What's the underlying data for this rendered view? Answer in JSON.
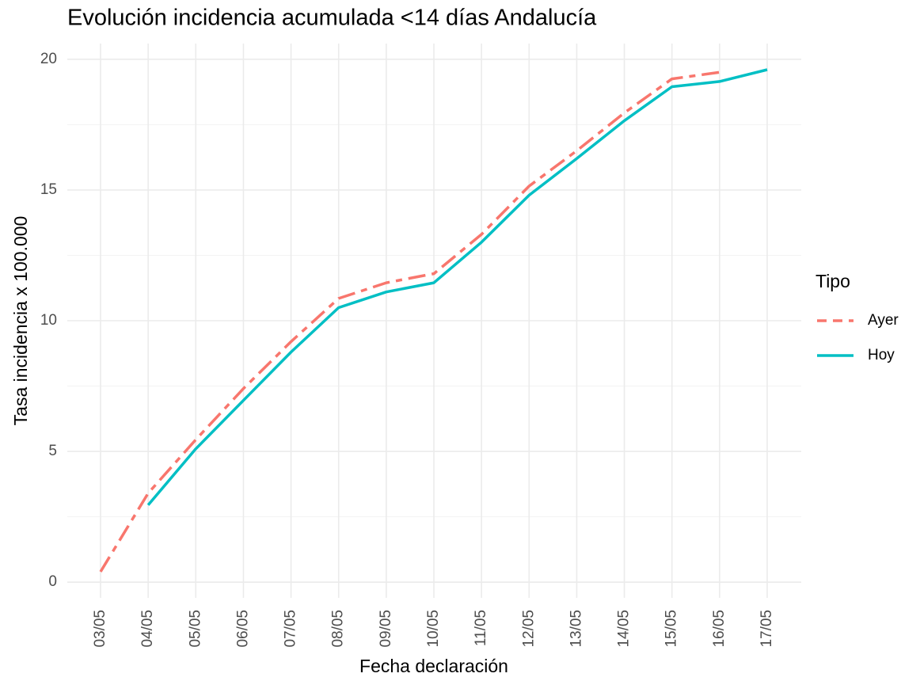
{
  "chart_data": {
    "type": "line",
    "title": "Evolución incidencia acumulada <14 días Andalucía",
    "x_label": "Fecha declaración",
    "y_label": "Tasa incidencia x 100.000",
    "categories": [
      "03/05",
      "04/05",
      "05/05",
      "06/05",
      "07/05",
      "08/05",
      "09/05",
      "10/05",
      "11/05",
      "12/05",
      "13/05",
      "14/05",
      "15/05",
      "16/05",
      "17/05"
    ],
    "series": [
      {
        "name": "Ayer",
        "color": "#F8766D",
        "dash": true,
        "values": [
          0.4,
          3.4,
          5.45,
          7.4,
          9.2,
          10.85,
          11.45,
          11.8,
          13.3,
          15.15,
          16.5,
          17.95,
          19.25,
          19.5,
          null
        ]
      },
      {
        "name": "Hoy",
        "color": "#00BFC4",
        "dash": false,
        "values": [
          null,
          2.95,
          5.1,
          6.95,
          8.8,
          10.5,
          11.1,
          11.45,
          13.0,
          14.8,
          16.2,
          17.65,
          18.95,
          19.15,
          19.6
        ]
      }
    ],
    "ylim": [
      -0.6,
      20.6
    ],
    "yticks": [
      0,
      5,
      10,
      15,
      20
    ],
    "grid": true,
    "minor_grid": true,
    "legend_title": "Tipo",
    "legend": "right"
  }
}
